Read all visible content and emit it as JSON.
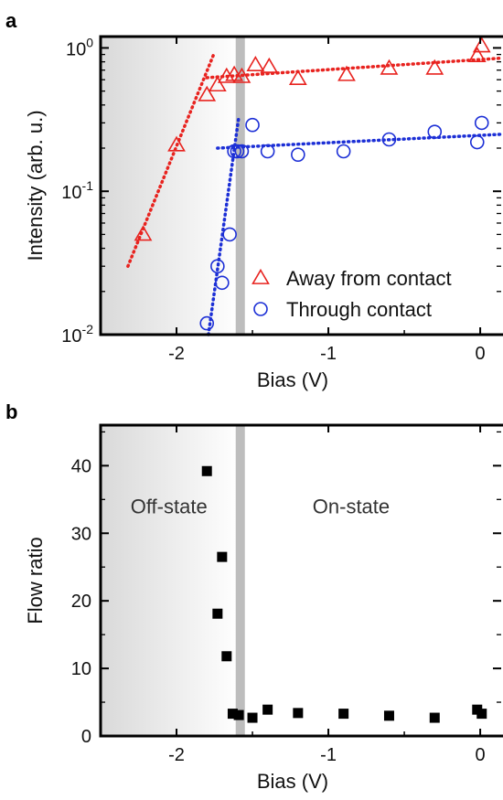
{
  "chart_data": [
    {
      "panel": "a",
      "type": "scatter",
      "xlabel": "Bias (V)",
      "ylabel": "Intensity (arb. u.)",
      "xlim": [
        -2.5,
        0.15
      ],
      "ylim": [
        0.01,
        1.2
      ],
      "yscale": "log",
      "x_ticks": [
        {
          "value": -2,
          "label": "-2"
        },
        {
          "value": -1,
          "label": "-1"
        },
        {
          "value": 0,
          "label": "0"
        }
      ],
      "y_ticks": [
        {
          "value": 0.01,
          "base": "10",
          "exp": "-2"
        },
        {
          "value": 0.1,
          "base": "10",
          "exp": "-1"
        },
        {
          "value": 1,
          "base": "10",
          "exp": "0"
        }
      ],
      "shaded_region": [
        -2.5,
        -1.58
      ],
      "threshold_line": -1.58,
      "legend_position": "bottom-right",
      "series": [
        {
          "name": "Away from contact",
          "marker": "triangle",
          "color": "#e8231f",
          "x": [
            -2.22,
            -2.0,
            -1.8,
            -1.73,
            -1.67,
            -1.62,
            -1.57,
            -1.48,
            -1.39,
            -1.2,
            -0.88,
            -0.6,
            -0.3,
            -0.02,
            0.01
          ],
          "y": [
            0.05,
            0.21,
            0.47,
            0.55,
            0.63,
            0.65,
            0.63,
            0.76,
            0.74,
            0.61,
            0.65,
            0.72,
            0.72,
            0.88,
            1.03
          ],
          "fits": [
            {
              "x": [
                -2.32,
                -1.75
              ],
              "y": [
                0.03,
                0.93
              ]
            },
            {
              "x": [
                -1.8,
                0.15
              ],
              "y": [
                0.62,
                0.85
              ]
            }
          ]
        },
        {
          "name": "Through contact",
          "marker": "circle",
          "color": "#1c2fd6",
          "x": [
            -1.8,
            -1.73,
            -1.7,
            -1.65,
            -1.62,
            -1.6,
            -1.57,
            -1.5,
            -1.4,
            -1.2,
            -0.9,
            -0.6,
            -0.3,
            -0.02,
            0.01
          ],
          "y": [
            0.012,
            0.03,
            0.023,
            0.05,
            0.19,
            0.19,
            0.19,
            0.29,
            0.19,
            0.18,
            0.19,
            0.23,
            0.26,
            0.22,
            0.3
          ],
          "fits": [
            {
              "x": [
                -1.79,
                -1.59
              ],
              "y": [
                0.01,
                0.33
              ]
            },
            {
              "x": [
                -1.73,
                0.15
              ],
              "y": [
                0.2,
                0.25
              ]
            }
          ]
        }
      ]
    },
    {
      "panel": "b",
      "type": "scatter",
      "xlabel": "Bias (V)",
      "ylabel": "Flow ratio",
      "xlim": [
        -2.5,
        0.15
      ],
      "ylim": [
        0,
        46
      ],
      "x_ticks": [
        {
          "value": -2,
          "label": "-2"
        },
        {
          "value": -1,
          "label": "-1"
        },
        {
          "value": 0,
          "label": "0"
        }
      ],
      "y_ticks": [
        {
          "value": 0,
          "label": "0"
        },
        {
          "value": 10,
          "label": "10"
        },
        {
          "value": 20,
          "label": "20"
        },
        {
          "value": 30,
          "label": "30"
        },
        {
          "value": 40,
          "label": "40"
        }
      ],
      "shaded_region": [
        -2.5,
        -1.58
      ],
      "threshold_line": -1.58,
      "annotations": [
        {
          "text": "Off-state",
          "x": -2.05,
          "y": 34
        },
        {
          "text": "On-state",
          "x": -0.85,
          "y": 34
        }
      ],
      "series": [
        {
          "marker": "square",
          "color": "#000000",
          "x": [
            -1.8,
            -1.7,
            -1.73,
            -1.67,
            -1.63,
            -1.59,
            -1.5,
            -1.4,
            -1.2,
            -0.9,
            -0.6,
            -0.3,
            -0.02,
            0.01
          ],
          "y": [
            39.2,
            26.5,
            18.1,
            11.8,
            3.3,
            3.1,
            2.7,
            3.9,
            3.4,
            3.3,
            3.0,
            2.7,
            3.9,
            3.3
          ]
        }
      ]
    }
  ]
}
